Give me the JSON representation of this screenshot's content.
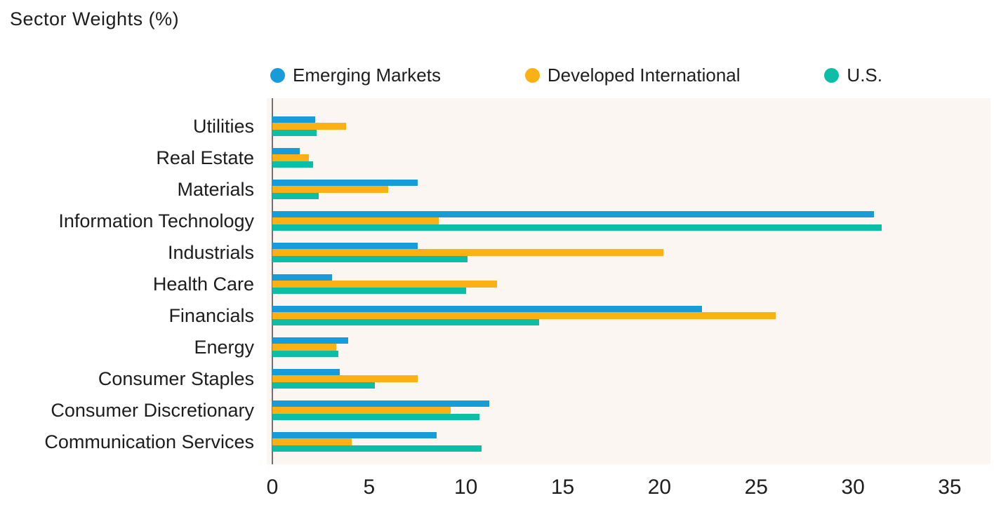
{
  "title": "Sector Weights (%)",
  "chart_data": {
    "type": "bar",
    "orientation": "horizontal",
    "title": "Sector Weights (%)",
    "xlabel": "",
    "ylabel": "",
    "categories": [
      "Utilities",
      "Real Estate",
      "Materials",
      "Information Technology",
      "Industrials",
      "Health Care",
      "Financials",
      "Energy",
      "Consumer Staples",
      "Consumer Discretionary",
      "Communication Services"
    ],
    "series": [
      {
        "name": "Emerging Markets",
        "color": "#189cd9",
        "values": [
          2.2,
          1.4,
          7.5,
          31.1,
          7.5,
          3.1,
          22.2,
          3.9,
          3.5,
          11.2,
          8.5
        ]
      },
      {
        "name": "Developed International",
        "color": "#fbb116",
        "values": [
          3.8,
          1.9,
          6.0,
          8.6,
          20.2,
          11.6,
          26.0,
          3.3,
          7.5,
          9.2,
          4.1
        ]
      },
      {
        "name": "U.S.",
        "color": "#0dbea6",
        "values": [
          2.3,
          2.1,
          2.4,
          31.5,
          10.1,
          10.0,
          13.8,
          3.4,
          5.3,
          10.7,
          10.8
        ]
      }
    ],
    "x_ticks": [
      0,
      5,
      10,
      15,
      20,
      25,
      30,
      35
    ],
    "xlim": [
      0,
      37
    ],
    "grid": false,
    "legend_position": "top",
    "plot_background": "#fcf6f3",
    "axis_color": "#707174",
    "text_color": "#1e1e20"
  }
}
